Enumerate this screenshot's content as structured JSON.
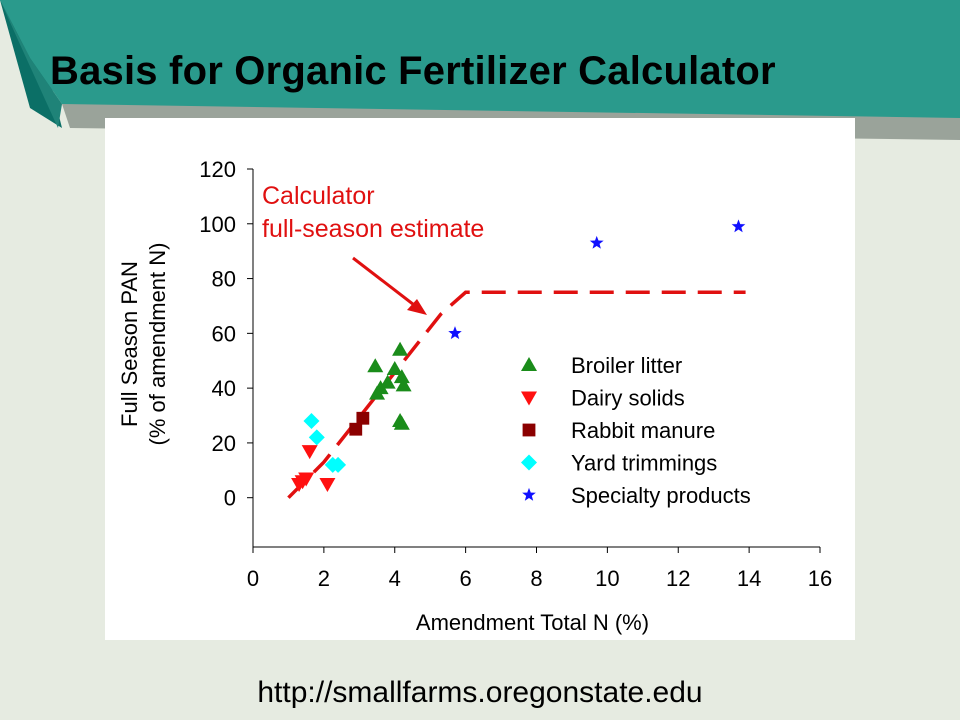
{
  "slide": {
    "title": "Basis for Organic Fertilizer Calculator",
    "footer_url": "http://smallfarms.oregonstate.edu",
    "colors": {
      "background": "#e6ebe1",
      "teal_banner": "#2a9a8c",
      "teal_edge": "#0b6f66"
    }
  },
  "chart_data": {
    "type": "scatter",
    "xlabel": "Amendment Total N (%)",
    "ylabel_line1": "Full Season PAN",
    "ylabel_line2": "(% of amendment N)",
    "xlim": [
      0,
      16
    ],
    "ylim": [
      -18,
      120
    ],
    "x_ticks": [
      0,
      2,
      4,
      6,
      8,
      10,
      12,
      14,
      16
    ],
    "y_ticks": [
      0,
      20,
      40,
      60,
      80,
      100,
      120
    ],
    "grid": false,
    "legend_position": "right, inside plot",
    "annotation": {
      "line1": "Calculator",
      "line2": "full-season estimate",
      "color": "#e01010"
    },
    "estimate_line": {
      "style": "dashed",
      "color": "#e01010",
      "points": [
        [
          1.0,
          0
        ],
        [
          2.0,
          13
        ],
        [
          5.3,
          67
        ],
        [
          6.0,
          75
        ],
        [
          13.9,
          75
        ]
      ]
    },
    "series": [
      {
        "name": "Broiler litter",
        "marker": "triangle-up",
        "color": "#1a8c1a",
        "points": [
          [
            3.5,
            38
          ],
          [
            3.6,
            40
          ],
          [
            3.45,
            48
          ],
          [
            3.8,
            42
          ],
          [
            4.0,
            47
          ],
          [
            4.15,
            54
          ],
          [
            4.2,
            44
          ],
          [
            4.25,
            41
          ],
          [
            4.15,
            28
          ],
          [
            4.2,
            27
          ]
        ]
      },
      {
        "name": "Dairy solids",
        "marker": "triangle-down",
        "color": "#ff1010",
        "points": [
          [
            1.3,
            5
          ],
          [
            1.4,
            6
          ],
          [
            1.5,
            7
          ],
          [
            1.6,
            17
          ],
          [
            2.1,
            5
          ]
        ]
      },
      {
        "name": "Rabbit manure",
        "marker": "square",
        "color": "#8b0000",
        "points": [
          [
            2.9,
            25
          ],
          [
            3.1,
            29
          ]
        ]
      },
      {
        "name": "Yard trimmings",
        "marker": "diamond",
        "color": "#00ffff",
        "points": [
          [
            1.65,
            28
          ],
          [
            1.8,
            22
          ],
          [
            2.25,
            12
          ],
          [
            2.4,
            12
          ]
        ]
      },
      {
        "name": "Specialty products",
        "marker": "star",
        "color": "#1010ff",
        "points": [
          [
            5.7,
            60
          ],
          [
            9.7,
            93
          ],
          [
            13.7,
            99
          ]
        ]
      }
    ]
  }
}
